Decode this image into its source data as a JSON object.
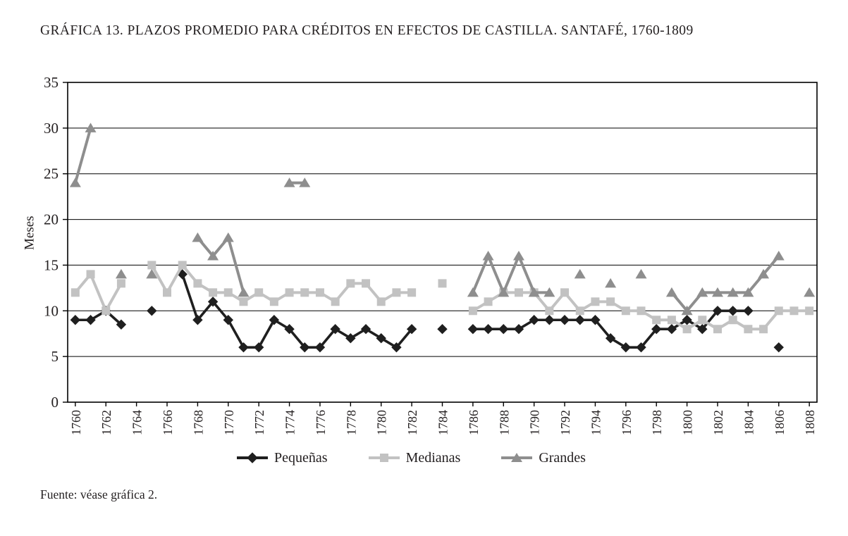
{
  "page": {
    "title": "GRÁFICA 13. PLAZOS PROMEDIO PARA CRÉDITOS EN EFECTOS DE CASTILLA. SANTAFÉ, 1760-1809",
    "source_note": "Fuente: véase gráfica 2."
  },
  "chart_data": {
    "type": "line",
    "title": "GRÁFICA 13. PLAZOS PROMEDIO PARA CRÉDITOS EN EFECTOS DE CASTILLA. SANTAFÉ, 1760-1809",
    "xlabel": "",
    "ylabel": "Meses",
    "ylim": [
      0,
      35
    ],
    "yticks": [
      0,
      5,
      10,
      15,
      20,
      25,
      30,
      35
    ],
    "x_start": 1760,
    "x_end": 1808,
    "xtick_labels": [
      "1760",
      "1762",
      "1764",
      "1766",
      "1768",
      "1770",
      "1772",
      "1774",
      "1776",
      "1778",
      "1780",
      "1782",
      "1784",
      "1786",
      "1788",
      "1790",
      "1792",
      "1794",
      "1796",
      "1798",
      "1800",
      "1802",
      "1804",
      "1806",
      "1808"
    ],
    "grid": "horizontal",
    "legend_position": "bottom",
    "series": [
      {
        "name": "Pequeñas",
        "marker": "diamond",
        "color": "#1f1f1f",
        "values": [
          9,
          9,
          10,
          8.5,
          null,
          10,
          null,
          14,
          9,
          11,
          9,
          6,
          6,
          9,
          8,
          6,
          6,
          8,
          7,
          8,
          7,
          6,
          8,
          null,
          8,
          null,
          8,
          8,
          8,
          8,
          9,
          9,
          9,
          9,
          9,
          7,
          6,
          6,
          8,
          8,
          9,
          8,
          10,
          10,
          10,
          null,
          6,
          null,
          null
        ]
      },
      {
        "name": "Medianas",
        "marker": "square",
        "color": "#c2c2c2",
        "values": [
          12,
          14,
          10,
          13,
          null,
          15,
          12,
          15,
          13,
          12,
          12,
          11,
          12,
          11,
          12,
          12,
          12,
          11,
          13,
          13,
          11,
          12,
          12,
          null,
          13,
          null,
          10,
          11,
          12,
          12,
          12,
          10,
          12,
          10,
          11,
          11,
          10,
          10,
          9,
          9,
          8,
          9,
          8,
          9,
          8,
          8,
          10,
          10,
          10
        ]
      },
      {
        "name": "Grandes",
        "marker": "triangle",
        "color": "#8e8e8e",
        "values": [
          24,
          30,
          null,
          14,
          null,
          14,
          null,
          null,
          18,
          16,
          18,
          12,
          null,
          null,
          24,
          24,
          null,
          null,
          null,
          null,
          null,
          null,
          null,
          null,
          null,
          null,
          12,
          16,
          12,
          16,
          12,
          12,
          null,
          14,
          null,
          13,
          null,
          14,
          null,
          12,
          10,
          12,
          12,
          12,
          12,
          14,
          16,
          null,
          12
        ]
      }
    ],
    "axis_color": "#000000",
    "grid_color": "#000000",
    "tick_label_color": "#231f20"
  }
}
